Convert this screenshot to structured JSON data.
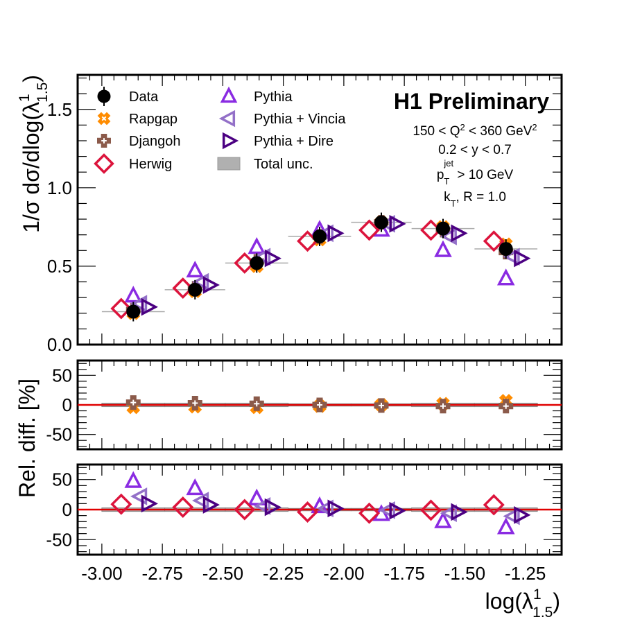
{
  "chart_data": {
    "type": "scatter",
    "title": "H1 Preliminary",
    "annotations": [
      {
        "id": "q2",
        "parts": [
          [
            "150 < Q",
            ""
          ],
          [
            "2",
            "sup"
          ],
          [
            " < 360 GeV",
            ""
          ],
          [
            "2",
            "sup"
          ]
        ]
      },
      {
        "id": "y",
        "parts": [
          [
            "0.2 < y < 0.7",
            ""
          ]
        ]
      },
      {
        "id": "pt",
        "parts": [
          [
            "p",
            ""
          ],
          [
            "T",
            "sub"
          ],
          [
            "jet",
            "supover"
          ],
          [
            " > 10 GeV",
            ""
          ]
        ]
      },
      {
        "id": "kt",
        "parts": [
          [
            "k",
            ""
          ],
          [
            "T",
            "sub"
          ],
          [
            ", R = 1.0",
            ""
          ]
        ]
      }
    ],
    "xlabel": "log(λ¹₁.₅)",
    "xlabel_parts": {
      "base": "log(λ",
      "sup": "1",
      "sub": "1.5",
      "close": ")"
    },
    "ylabel_main": "1/σ dσ/dlog(λ¹₁.₅)",
    "ylabel_main_parts": {
      "base": "1/σ dσ/dlog(λ",
      "sup": "1",
      "sub": "1.5",
      "close": ")"
    },
    "ylabel_ratio": "Rel. diff. [%]",
    "xlim": [
      -3.1,
      -1.1
    ],
    "xticks": [
      -3.0,
      -2.75,
      -2.5,
      -2.25,
      -2.0,
      -1.75,
      -1.5,
      -1.25
    ],
    "xtick_labels": [
      "-3.00",
      "-2.75",
      "-2.50",
      "-2.25",
      "-2.00",
      "-1.75",
      "-1.50",
      "-1.25"
    ],
    "main": {
      "ylim": [
        0.0,
        1.72
      ],
      "yticks": [
        0.0,
        0.5,
        1.0,
        1.5
      ],
      "ytick_labels": [
        "0.0",
        "0.5",
        "1.0",
        "1.5"
      ]
    },
    "ratio": {
      "ylim": [
        -75,
        75
      ],
      "yticks": [
        -50,
        0,
        50
      ],
      "ytick_labels": [
        "-50",
        "0",
        "50"
      ]
    },
    "bin_edges": [
      -3.0,
      -2.74,
      -2.49,
      -2.23,
      -1.97,
      -1.72,
      -1.46,
      -1.2
    ],
    "bin_centers": [
      -2.87,
      -2.615,
      -2.36,
      -2.1,
      -1.845,
      -1.59,
      -1.33
    ],
    "data": {
      "name": "Data",
      "values": [
        0.21,
        0.35,
        0.52,
        0.69,
        0.78,
        0.74,
        0.61
      ],
      "total_unc_pct": [
        3,
        3,
        3,
        2,
        2,
        3,
        3
      ]
    },
    "series": [
      {
        "name": "Rapgap",
        "key": "rapgap",
        "color": "#ff8c00",
        "marker": "x-cross",
        "offset": 0.0,
        "values": [
          0.2,
          0.34,
          0.5,
          0.67,
          0.78,
          0.75,
          0.64
        ],
        "rel_diff_panel": 1,
        "rel_diff": [
          -4,
          -3,
          -4,
          -2,
          0,
          2,
          7
        ]
      },
      {
        "name": "Djangoh",
        "key": "djangoh",
        "color": "#8b5a4a",
        "marker": "plus",
        "offset": 0.0,
        "values": [
          0.22,
          0.36,
          0.53,
          0.69,
          0.78,
          0.73,
          0.59
        ],
        "rel_diff_panel": 1,
        "rel_diff": [
          4,
          3,
          2,
          0,
          -1,
          -2,
          -2
        ]
      },
      {
        "name": "Herwig",
        "key": "herwig",
        "color": "#dc143c",
        "marker": "diamond",
        "offset": -0.05,
        "values": [
          0.23,
          0.36,
          0.52,
          0.66,
          0.73,
          0.73,
          0.66
        ],
        "rel_diff_panel": 2,
        "rel_diff": [
          9,
          4,
          0,
          -4,
          -6,
          -1,
          8
        ]
      },
      {
        "name": "Pythia",
        "key": "pythia",
        "color": "#8a2be2",
        "marker": "triangle-up",
        "offset": 0.0,
        "values": [
          0.31,
          0.47,
          0.62,
          0.73,
          0.73,
          0.6,
          0.42
        ],
        "rel_diff_panel": 2,
        "rel_diff": [
          47,
          35,
          18,
          5,
          -8,
          -20,
          -30
        ]
      },
      {
        "name": "Pythia + Vincia",
        "key": "vincia",
        "color": "#9370c8",
        "marker": "triangle-left",
        "offset": 0.03,
        "values": [
          0.26,
          0.4,
          0.56,
          0.71,
          0.77,
          0.69,
          0.56
        ],
        "rel_diff_panel": 2,
        "rel_diff": [
          22,
          15,
          6,
          2,
          -1,
          -6,
          -11
        ]
      },
      {
        "name": "Pythia + Dire",
        "key": "dire",
        "color": "#4b0082",
        "marker": "triangle-right",
        "offset": 0.06,
        "values": [
          0.24,
          0.38,
          0.55,
          0.71,
          0.77,
          0.71,
          0.55
        ],
        "rel_diff_panel": 2,
        "rel_diff": [
          10,
          8,
          4,
          2,
          -2,
          -4,
          -9
        ]
      }
    ],
    "legend": {
      "placement": "top-left",
      "entries": [
        {
          "label": "Data",
          "marker": "data"
        },
        {
          "label": "Rapgap",
          "marker": "x-cross",
          "color": "#ff8c00"
        },
        {
          "label": "Djangoh",
          "marker": "plus",
          "color": "#8b5a4a"
        },
        {
          "label": "Herwig",
          "marker": "diamond",
          "color": "#dc143c"
        },
        {
          "label": "Pythia",
          "marker": "triangle-up",
          "color": "#8a2be2"
        },
        {
          "label": "Pythia + Vincia",
          "marker": "triangle-left",
          "color": "#9370c8"
        },
        {
          "label": "Pythia + Dire",
          "marker": "triangle-right",
          "color": "#4b0082"
        },
        {
          "label": "Total unc.",
          "marker": "box",
          "color": "#b0b0b0"
        }
      ]
    },
    "reference_line": {
      "value": 0,
      "color": "#e00000"
    },
    "grid": false
  }
}
